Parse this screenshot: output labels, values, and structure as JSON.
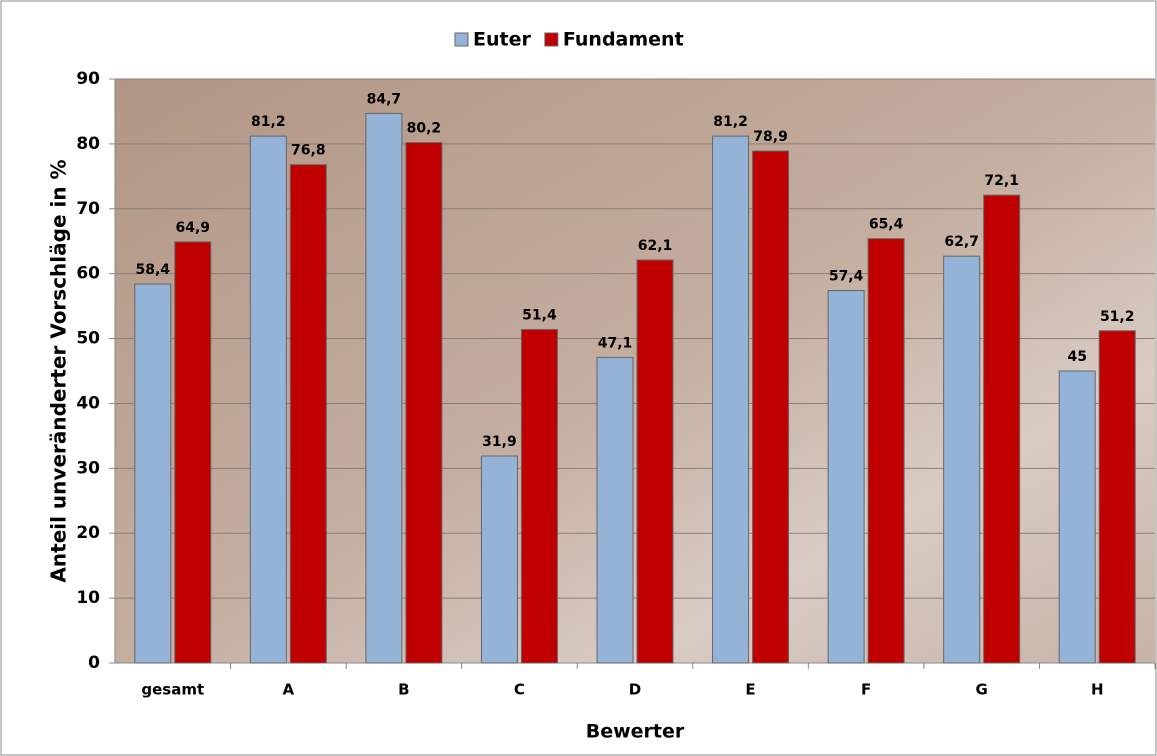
{
  "chart_data": {
    "type": "bar",
    "x_label": "Bewerter",
    "y_label": "Anteil unveränderter Vorschläge in %",
    "categories": [
      "gesamt",
      "A",
      "B",
      "C",
      "D",
      "E",
      "F",
      "G",
      "H"
    ],
    "series": [
      {
        "name": "Euter",
        "color": "#95b3d7",
        "values": [
          58.4,
          81.2,
          84.7,
          31.9,
          47.1,
          81.2,
          57.4,
          62.7,
          45
        ],
        "value_labels": [
          "58,4",
          "81,2",
          "84,7",
          "31,9",
          "47,1",
          "81,2",
          "57,4",
          "62,7",
          "45"
        ]
      },
      {
        "name": "Fundament",
        "color": "#c00000",
        "values": [
          64.9,
          76.8,
          80.2,
          51.4,
          62.1,
          78.9,
          65.4,
          72.1,
          51.2
        ],
        "value_labels": [
          "64,9",
          "76,8",
          "80,2",
          "51,4",
          "62,1",
          "78,9",
          "65,4",
          "72,1",
          "51,2"
        ]
      }
    ],
    "ylim": [
      0,
      90
    ],
    "yticks": [
      0,
      10,
      20,
      30,
      40,
      50,
      60,
      70,
      80,
      90
    ],
    "grid": true,
    "legend": "top"
  }
}
